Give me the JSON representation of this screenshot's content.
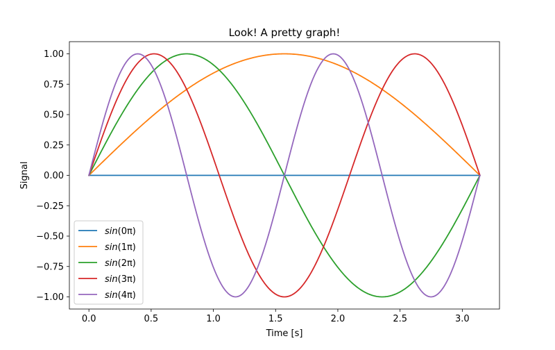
{
  "chart_data": {
    "type": "line",
    "title": "Look!  A pretty graph!",
    "xlabel": "Time [s]",
    "ylabel": "Signal",
    "xlim": [
      -0.157,
      3.299
    ],
    "ylim": [
      -1.1,
      1.1
    ],
    "x_range": [
      0.0,
      3.14159
    ],
    "xticks": [
      0.0,
      0.5,
      1.0,
      1.5,
      2.0,
      2.5,
      3.0
    ],
    "xtick_labels": [
      "0.0",
      "0.5",
      "1.0",
      "1.5",
      "2.0",
      "2.5",
      "3.0"
    ],
    "yticks": [
      -1.0,
      -0.75,
      -0.5,
      -0.25,
      0.0,
      0.25,
      0.5,
      0.75,
      1.0
    ],
    "ytick_labels": [
      "−1.00",
      "−0.75",
      "−0.50",
      "−0.25",
      "0.00",
      "0.25",
      "0.50",
      "0.75",
      "1.00"
    ],
    "grid": false,
    "legend_position": "lower-left",
    "series": [
      {
        "name": "sin(0π)",
        "legend_main": "sin",
        "legend_arg": "(0π)",
        "frequency": 0,
        "color": "#1f77b4"
      },
      {
        "name": "sin(1π)",
        "legend_main": "sin",
        "legend_arg": "(1π)",
        "frequency": 1,
        "color": "#ff7f0e"
      },
      {
        "name": "sin(2π)",
        "legend_main": "sin",
        "legend_arg": "(2π)",
        "frequency": 2,
        "color": "#2ca02c"
      },
      {
        "name": "sin(3π)",
        "legend_main": "sin",
        "legend_arg": "(3π)",
        "frequency": 3,
        "color": "#d62728"
      },
      {
        "name": "sin(4π)",
        "legend_main": "sin",
        "legend_arg": "(4π)",
        "frequency": 4,
        "color": "#9467bd"
      }
    ]
  }
}
